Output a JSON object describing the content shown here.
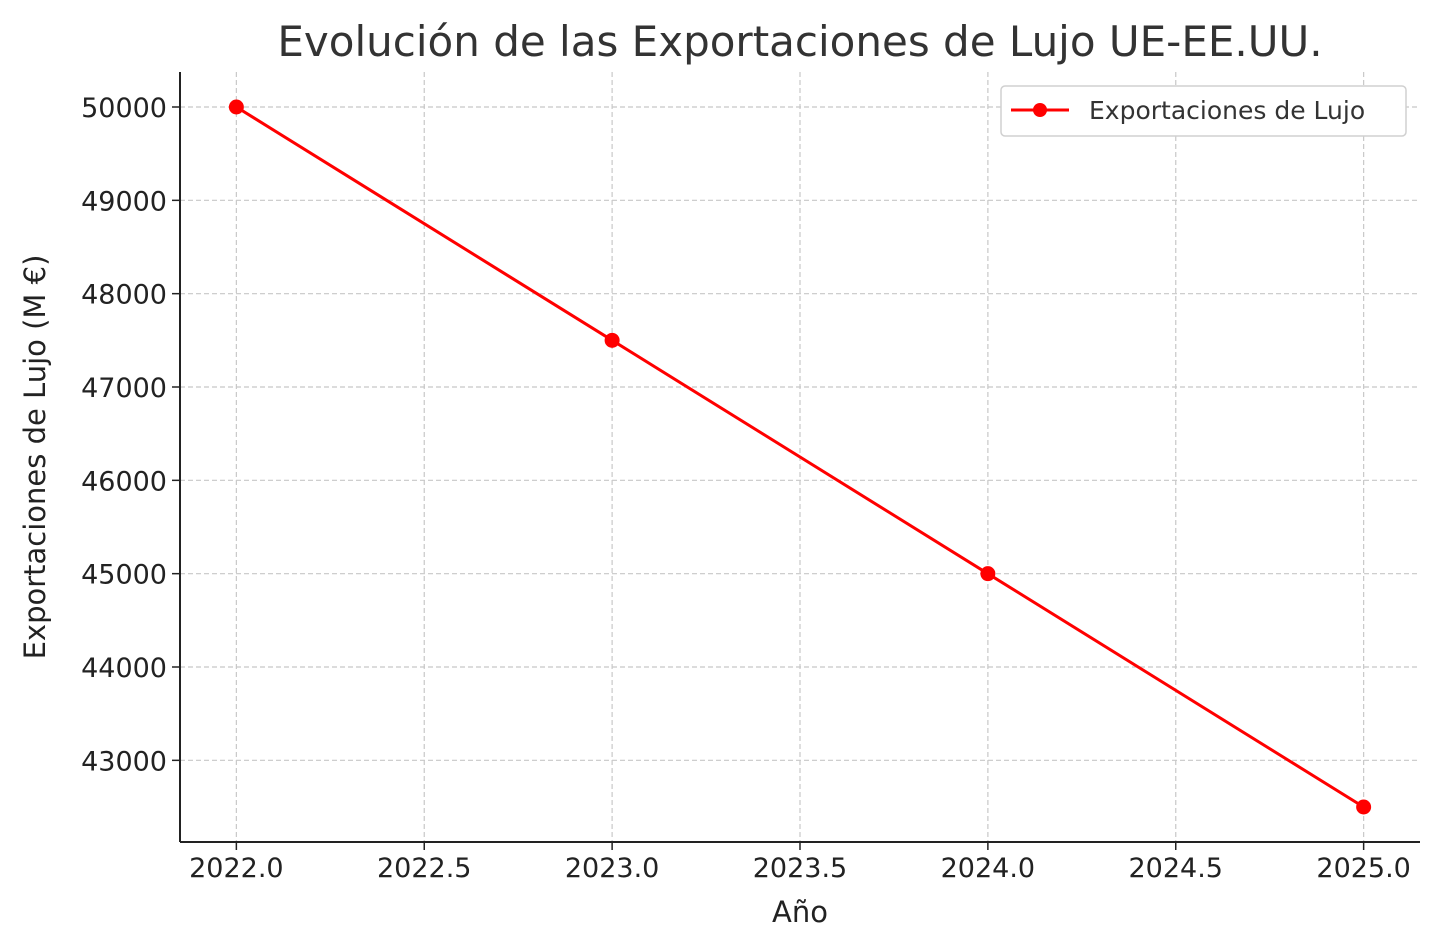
{
  "chart_data": {
    "type": "line",
    "title": "Evolución de las Exportaciones de Lujo UE-EE.UU.",
    "xlabel": "Año",
    "ylabel": "Exportaciones de Lujo (M €)",
    "xlim": [
      2021.85,
      2025.15
    ],
    "ylim": [
      42125,
      50375
    ],
    "xticks": [
      2022.0,
      2022.5,
      2023.0,
      2023.5,
      2024.0,
      2024.5,
      2025.0
    ],
    "xtick_labels": [
      "2022.0",
      "2022.5",
      "2023.0",
      "2023.5",
      "2024.0",
      "2024.5",
      "2025.0"
    ],
    "yticks": [
      43000,
      44000,
      45000,
      46000,
      47000,
      48000,
      49000,
      50000
    ],
    "ytick_labels": [
      "43000",
      "44000",
      "45000",
      "46000",
      "47000",
      "48000",
      "49000",
      "50000"
    ],
    "grid": true,
    "legend_position": "top-right",
    "series": [
      {
        "name": "Exportaciones de Lujo",
        "color": "#ff0000",
        "marker": "circle",
        "x": [
          2022,
          2023,
          2024,
          2025
        ],
        "values": [
          50000,
          47500,
          45000,
          42500
        ]
      }
    ]
  }
}
